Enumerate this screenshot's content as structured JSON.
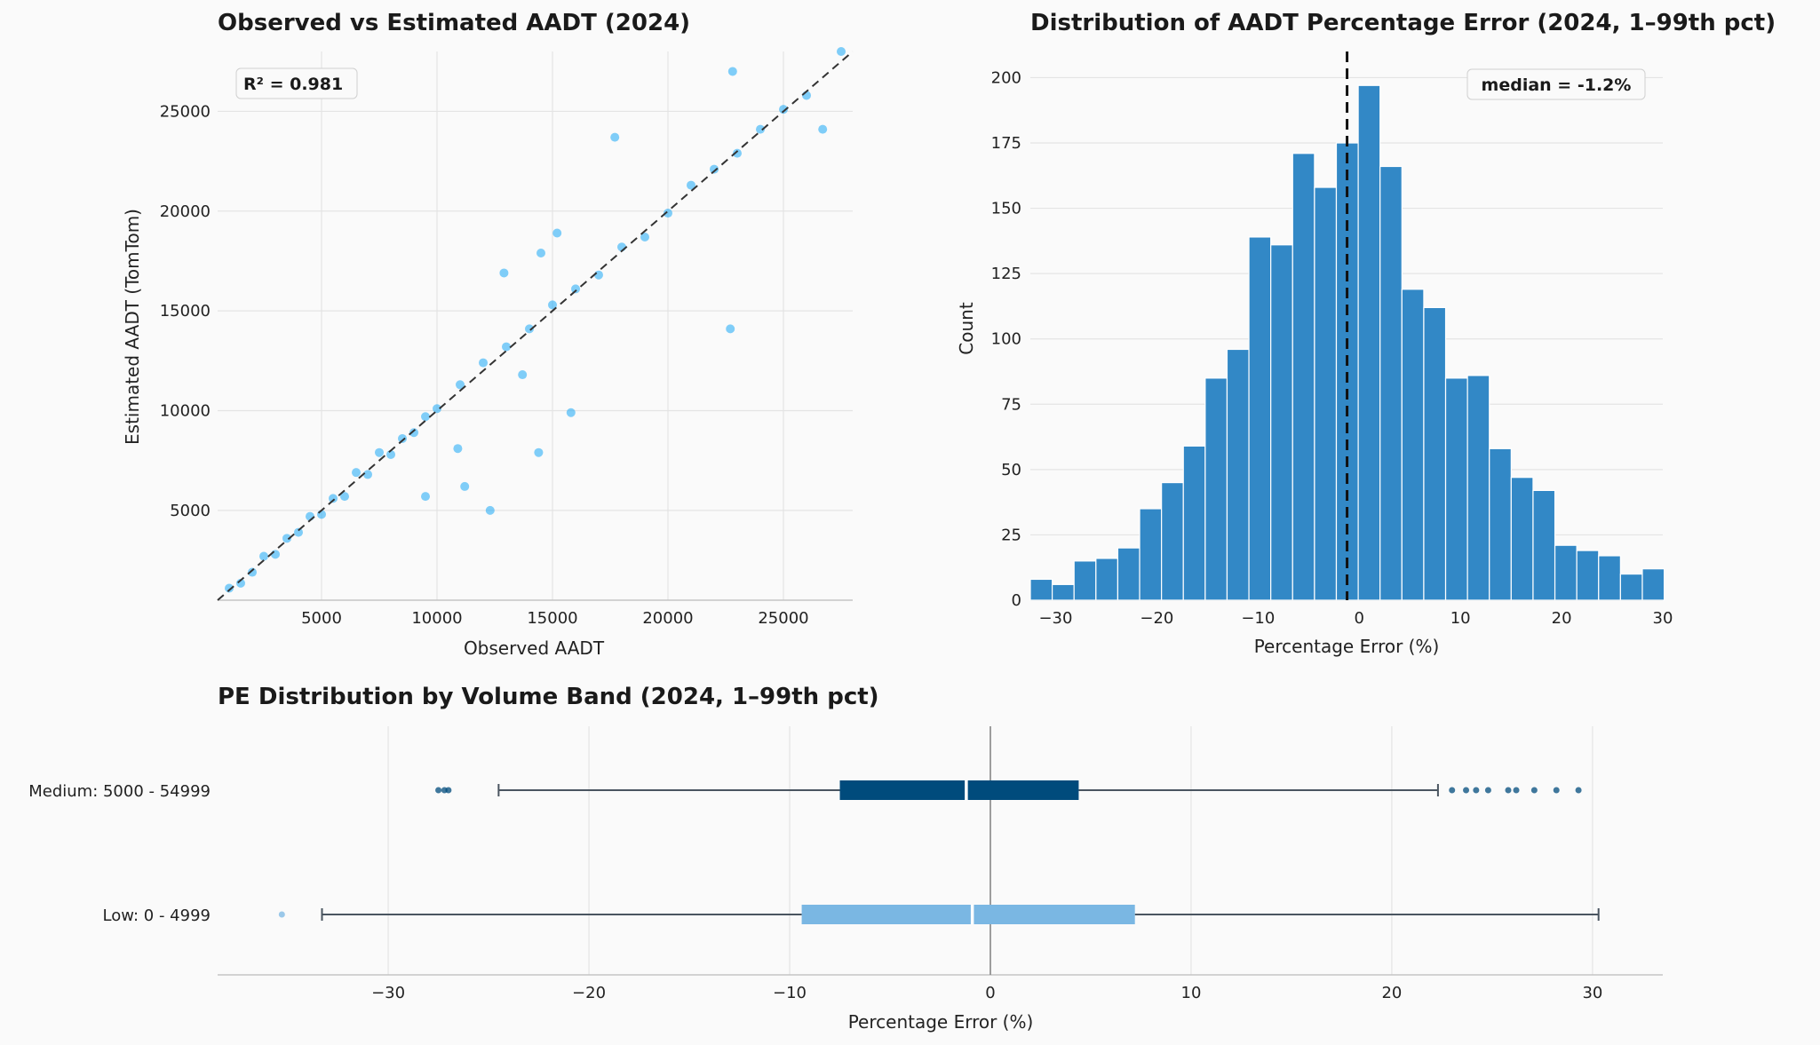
{
  "chart_data": [
    {
      "type": "scatter",
      "title": "Observed vs Estimated AADT (2024)",
      "xlabel": "Observed AADT",
      "ylabel": "Estimated AADT (TomTom)",
      "xlim": [
        500,
        28000
      ],
      "ylim": [
        500,
        28000
      ],
      "xticks": [
        5000,
        10000,
        15000,
        20000,
        25000
      ],
      "yticks": [
        5000,
        10000,
        15000,
        20000,
        25000
      ],
      "grid": true,
      "annotation": "R² = 0.981",
      "reference_line": "y = x (dashed)",
      "color": "#1aa7f5",
      "points": [
        [
          1000,
          1100
        ],
        [
          1500,
          1350
        ],
        [
          2000,
          1900
        ],
        [
          2500,
          2700
        ],
        [
          3000,
          2800
        ],
        [
          3500,
          3600
        ],
        [
          4000,
          3900
        ],
        [
          4500,
          4700
        ],
        [
          5000,
          4800
        ],
        [
          5500,
          5600
        ],
        [
          6000,
          5700
        ],
        [
          6500,
          6900
        ],
        [
          7000,
          6800
        ],
        [
          7500,
          7900
        ],
        [
          8000,
          7800
        ],
        [
          8500,
          8600
        ],
        [
          9000,
          8900
        ],
        [
          9500,
          9700
        ],
        [
          10000,
          10100
        ],
        [
          11000,
          11300
        ],
        [
          12000,
          12400
        ],
        [
          13000,
          13200
        ],
        [
          14000,
          14100
        ],
        [
          15000,
          15300
        ],
        [
          16000,
          16100
        ],
        [
          17000,
          16800
        ],
        [
          18000,
          18200
        ],
        [
          19000,
          18700
        ],
        [
          20000,
          19900
        ],
        [
          21000,
          21300
        ],
        [
          22000,
          22100
        ],
        [
          23000,
          22900
        ],
        [
          24000,
          24100
        ],
        [
          25000,
          25100
        ],
        [
          26000,
          25800
        ],
        [
          27500,
          28000
        ],
        [
          22700,
          14100
        ],
        [
          12300,
          5000
        ],
        [
          15800,
          9900
        ],
        [
          14400,
          7900
        ],
        [
          17700,
          23700
        ],
        [
          22800,
          27000
        ],
        [
          26700,
          24100
        ],
        [
          11200,
          6200
        ],
        [
          9500,
          5700
        ],
        [
          12900,
          16900
        ],
        [
          14500,
          17900
        ],
        [
          15200,
          18900
        ],
        [
          10900,
          8100
        ],
        [
          13700,
          11800
        ]
      ]
    },
    {
      "type": "bar",
      "title": "Distribution of AADT Percentage Error (2024, 1–99th pct)",
      "xlabel": "Percentage Error (%)",
      "ylabel": "Count",
      "xlim": [
        -32.5,
        30
      ],
      "ylim": [
        0,
        210
      ],
      "xticks": [
        -30,
        -20,
        -10,
        0,
        10,
        20,
        30
      ],
      "yticks": [
        0,
        25,
        50,
        75,
        100,
        125,
        150,
        175,
        200
      ],
      "grid": true,
      "annotation": "median = -1.2%",
      "median": -1.2,
      "bin_start": -32.5,
      "bin_width": 2.16,
      "values": [
        8,
        6,
        15,
        16,
        20,
        35,
        45,
        59,
        85,
        96,
        139,
        136,
        171,
        158,
        175,
        197,
        166,
        119,
        112,
        85,
        86,
        58,
        47,
        42,
        21,
        19,
        17,
        10,
        12
      ],
      "color": "#3288c6"
    },
    {
      "type": "box",
      "title": "PE Distribution by Volume Band (2024, 1–99th pct)",
      "xlabel": "Percentage Error (%)",
      "xlim": [
        -38.5,
        33.5
      ],
      "xticks": [
        -30,
        -20,
        -10,
        0,
        10,
        20,
        30
      ],
      "grid": true,
      "reference_line": "x = 0",
      "categories": [
        "Medium: 5000 - 54999",
        "Low: 0 - 4999"
      ],
      "boxes": [
        {
          "category": "Medium: 5000 - 54999",
          "whisker_low": -24.5,
          "q1": -7.5,
          "median": -1.2,
          "q3": 4.4,
          "whisker_high": 22.3,
          "outliers": [
            -27.5,
            -27.2,
            -27.0,
            23.0,
            23.7,
            24.2,
            24.8,
            25.8,
            26.2,
            27.1,
            28.2,
            29.3
          ],
          "color": "#004b7c"
        },
        {
          "category": "Low: 0 - 4999",
          "whisker_low": -33.3,
          "q1": -9.4,
          "median": -0.9,
          "q3": 7.2,
          "whisker_high": 30.3,
          "outliers": [
            -35.3
          ],
          "color": "#7ab7e3"
        }
      ]
    }
  ]
}
